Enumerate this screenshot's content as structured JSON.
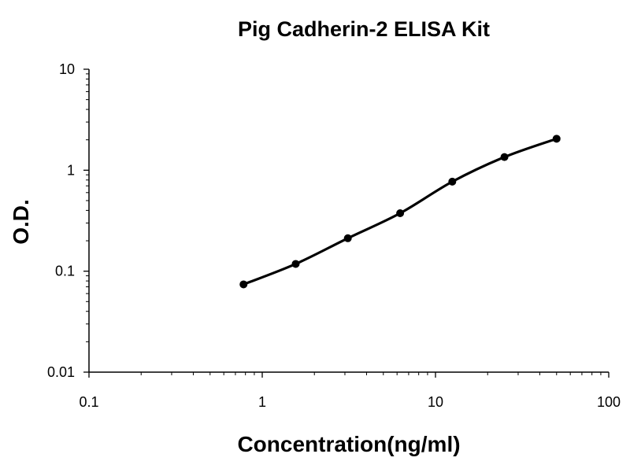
{
  "chart_data": {
    "type": "line",
    "title": "Pig Cadherin-2 ELISA Kit",
    "xlabel": "Concentration(ng/ml)",
    "ylabel": "O.D.",
    "x_scale": "log",
    "y_scale": "log",
    "xlim": [
      0.1,
      100
    ],
    "ylim": [
      0.01,
      10
    ],
    "x_ticks": [
      "0.1",
      "1",
      "10",
      "100"
    ],
    "y_ticks": [
      "0.01",
      "0.1",
      "1",
      "10"
    ],
    "grid": false,
    "legend": "none",
    "line_color": "#000000",
    "series": [
      {
        "x": [
          0.78,
          1.56,
          3.12,
          6.25,
          12.5,
          25,
          50
        ],
        "y": [
          0.074,
          0.118,
          0.212,
          0.375,
          0.77,
          1.35,
          2.05
        ]
      }
    ]
  }
}
